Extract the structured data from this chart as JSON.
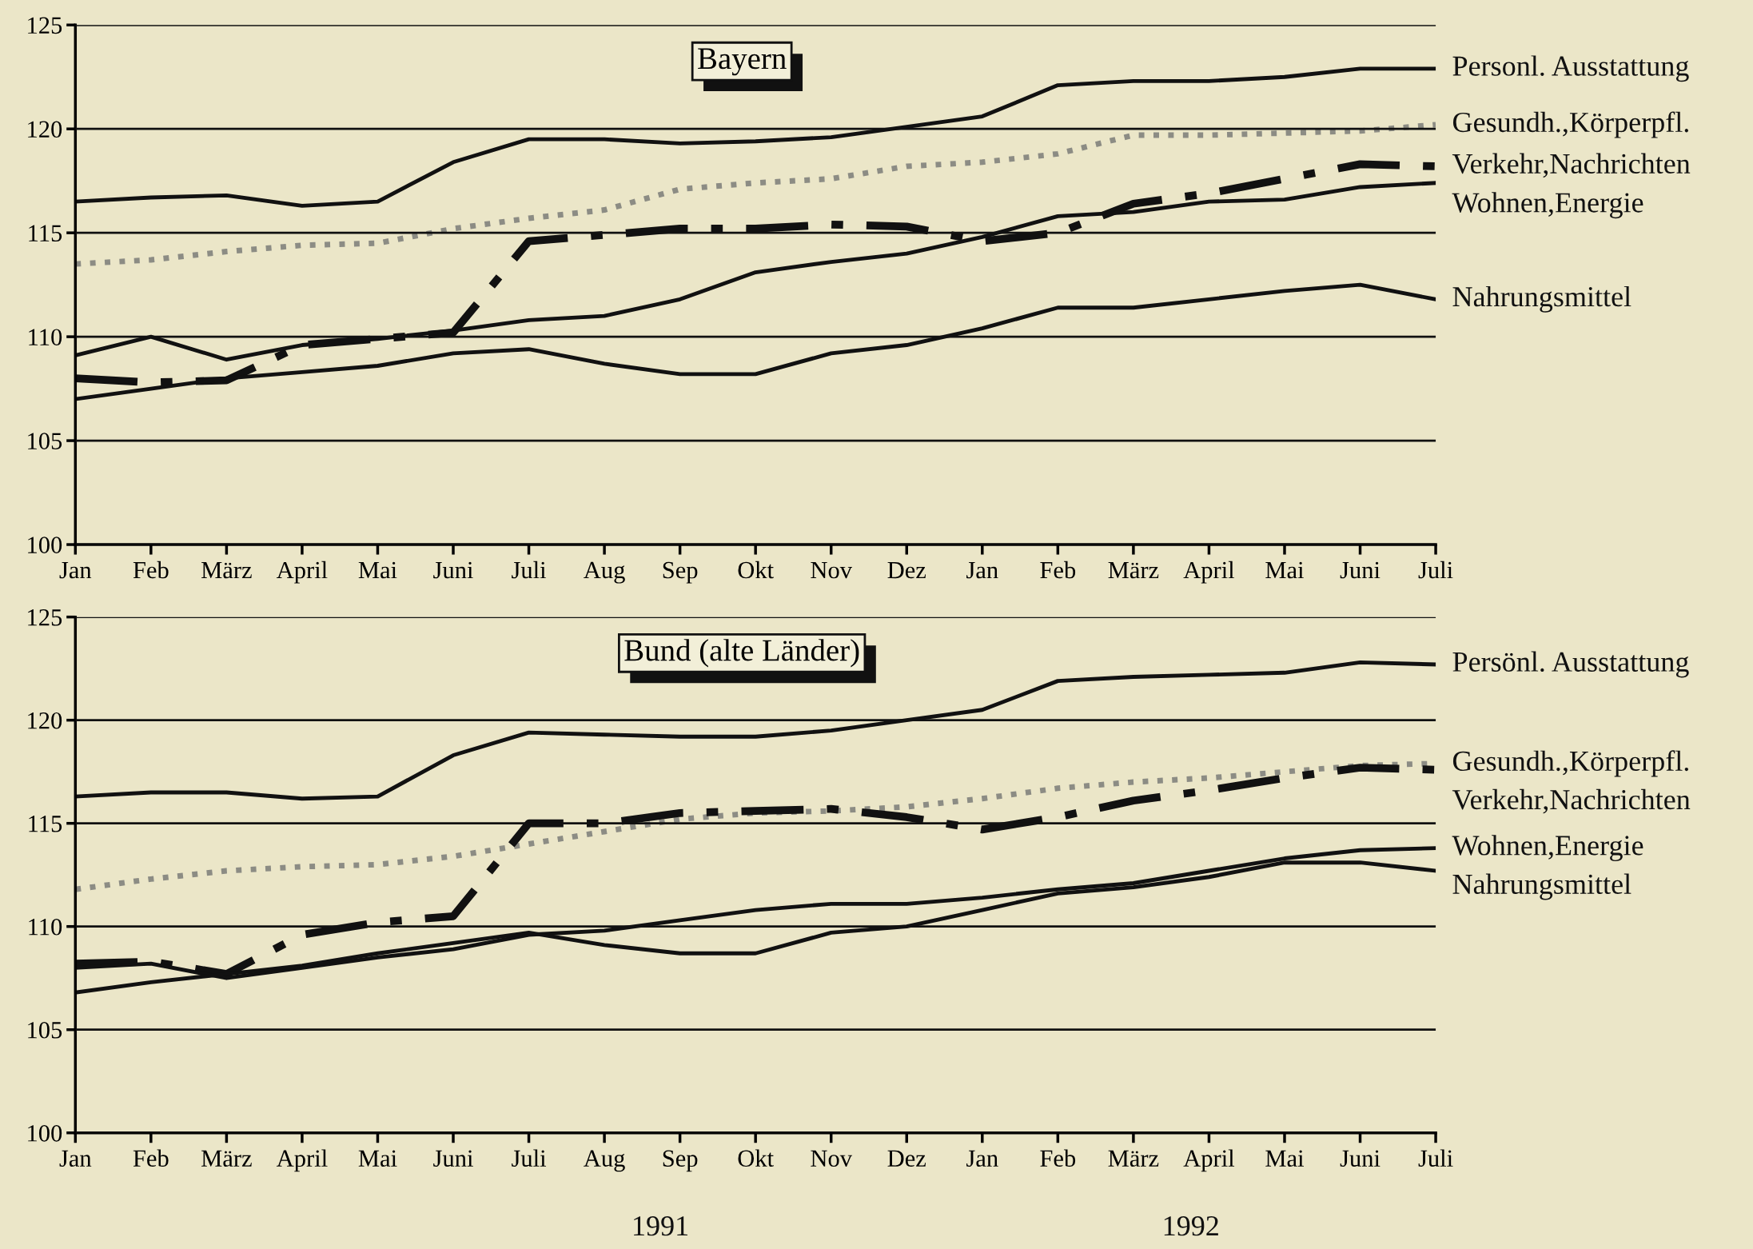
{
  "chart_data": [
    {
      "type": "line",
      "title": "Bayern",
      "categories": [
        "Jan",
        "Feb",
        "März",
        "April",
        "Mai",
        "Juni",
        "Juli",
        "Aug",
        "Sep",
        "Okt",
        "Nov",
        "Dez",
        "Jan",
        "Feb",
        "März",
        "April",
        "Mai",
        "Juni",
        "Juli"
      ],
      "ylim": [
        100,
        125
      ],
      "yticks": [
        100,
        105,
        110,
        115,
        120,
        125
      ],
      "grid": "y",
      "legend": false,
      "marker": "none",
      "series": [
        {
          "name": "Personl. Ausstattung",
          "color": "#111111",
          "line_style": "solid",
          "values": [
            116.5,
            116.7,
            116.8,
            116.3,
            116.5,
            118.4,
            119.5,
            119.5,
            119.3,
            119.4,
            119.6,
            120.1,
            120.6,
            122.1,
            122.3,
            122.3,
            122.5,
            122.9,
            122.9
          ]
        },
        {
          "name": "Gesundh.,Körperpfl.",
          "color": "#8c8c84",
          "line_style": "dotted",
          "values": [
            113.5,
            113.7,
            114.1,
            114.4,
            114.5,
            115.2,
            115.7,
            116.1,
            117.1,
            117.4,
            117.6,
            118.2,
            118.4,
            118.8,
            119.7,
            119.7,
            119.8,
            119.9,
            120.2
          ]
        },
        {
          "name": "Verkehr,Nachrichten",
          "color": "#111111",
          "line_style": "dashed",
          "values": [
            108.0,
            107.8,
            107.9,
            109.6,
            109.9,
            110.2,
            114.6,
            114.9,
            115.2,
            115.2,
            115.4,
            115.3,
            114.6,
            115.0,
            116.4,
            116.9,
            117.6,
            118.3,
            118.2
          ]
        },
        {
          "name": "Wohnen,Energie",
          "color": "#111111",
          "line_style": "solid",
          "values": [
            109.1,
            110.0,
            108.9,
            109.6,
            109.9,
            110.3,
            110.8,
            111.0,
            111.8,
            113.1,
            113.6,
            114.0,
            114.8,
            115.8,
            116.0,
            116.5,
            116.6,
            117.2,
            117.4
          ]
        },
        {
          "name": "Nahrungsmittel",
          "color": "#111111",
          "line_style": "solid",
          "values": [
            107.0,
            107.5,
            108.0,
            108.3,
            108.6,
            109.2,
            109.4,
            108.7,
            108.2,
            108.2,
            109.2,
            109.6,
            110.4,
            111.4,
            111.4,
            111.8,
            112.2,
            112.5,
            111.8
          ]
        }
      ]
    },
    {
      "type": "line",
      "title": "Bund (alte Länder)",
      "categories": [
        "Jan",
        "Feb",
        "März",
        "April",
        "Mai",
        "Juni",
        "Juli",
        "Aug",
        "Sep",
        "Okt",
        "Nov",
        "Dez",
        "Jan",
        "Feb",
        "März",
        "April",
        "Mai",
        "Juni",
        "Juli"
      ],
      "ylim": [
        100,
        125
      ],
      "yticks": [
        100,
        105,
        110,
        115,
        120,
        125
      ],
      "grid": "y",
      "legend": false,
      "marker": "none",
      "annotations": [
        "1991",
        "1992"
      ],
      "series": [
        {
          "name": "Persönl. Ausstattung",
          "color": "#111111",
          "line_style": "solid",
          "values": [
            116.3,
            116.5,
            116.5,
            116.2,
            116.3,
            118.3,
            119.4,
            119.3,
            119.2,
            119.2,
            119.5,
            120.0,
            120.5,
            121.9,
            122.1,
            122.2,
            122.3,
            122.8,
            122.7
          ]
        },
        {
          "name": "Gesundh.,Körperpfl.",
          "color": "#8c8c84",
          "line_style": "dotted",
          "values": [
            111.8,
            112.3,
            112.7,
            112.9,
            113.0,
            113.4,
            114.0,
            114.6,
            115.2,
            115.5,
            115.6,
            115.8,
            116.2,
            116.7,
            117.0,
            117.2,
            117.5,
            117.8,
            117.9
          ]
        },
        {
          "name": "Verkehr,Nachrichten",
          "color": "#111111",
          "line_style": "dashed",
          "values": [
            108.2,
            108.3,
            107.7,
            109.6,
            110.2,
            110.5,
            115.0,
            115.0,
            115.5,
            115.6,
            115.7,
            115.3,
            114.7,
            115.3,
            116.1,
            116.6,
            117.2,
            117.7,
            117.6
          ]
        },
        {
          "name": "Wohnen,Energie",
          "color": "#111111",
          "line_style": "solid",
          "values": [
            108.0,
            108.2,
            107.5,
            108.0,
            108.5,
            108.9,
            109.6,
            109.8,
            110.3,
            110.8,
            111.1,
            111.1,
            111.4,
            111.8,
            112.1,
            112.7,
            113.3,
            113.7,
            113.8
          ]
        },
        {
          "name": "Nahrungsmittel",
          "color": "#111111",
          "line_style": "solid",
          "values": [
            106.8,
            107.3,
            107.7,
            108.1,
            108.7,
            109.2,
            109.7,
            109.1,
            108.7,
            108.7,
            109.7,
            110.0,
            110.8,
            111.6,
            111.9,
            112.4,
            113.1,
            113.1,
            112.7
          ]
        }
      ]
    }
  ]
}
